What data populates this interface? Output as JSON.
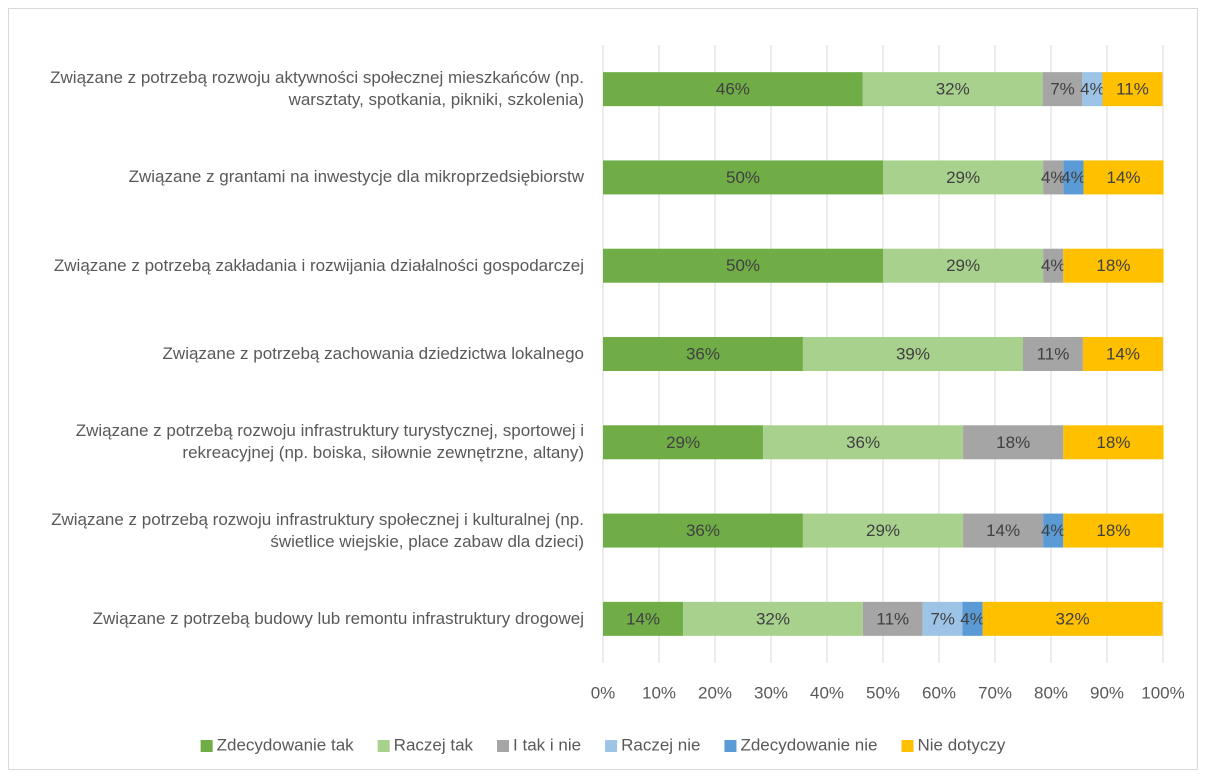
{
  "chart_data": {
    "type": "bar",
    "orientation": "horizontal",
    "stacked": true,
    "categories": [
      "Związane z potrzebą rozwoju aktywności społecznej mieszkańców (np. warsztaty, spotkania, pikniki, szkolenia)",
      "Związane z grantami na inwestycje dla mikroprzedsiębiorstw",
      "Związane z potrzebą zakładania i rozwijania działalności gospodarczej",
      "Związane z potrzebą zachowania dziedzictwa lokalnego",
      "Związane z potrzebą rozwoju infrastruktury turystycznej, sportowej i rekreacyjnej (np. boiska, siłownie zewnętrzne, altany)",
      "Związane z potrzebą rozwoju infrastruktury społecznej i kulturalnej (np. świetlice wiejskie, place zabaw dla dzieci)",
      "Związane z potrzebą budowy lub remontu infrastruktury drogowej"
    ],
    "series": [
      {
        "name": "Zdecydowanie tak",
        "color": "#70ad47",
        "values": [
          46.4,
          50,
          50,
          35.7,
          28.6,
          35.7,
          14.3
        ],
        "value_labels": [
          "46%",
          "50%",
          "50%",
          "36%",
          "29%",
          "36%",
          "14%"
        ]
      },
      {
        "name": "Raczej tak",
        "color": "#a9d18e",
        "values": [
          32.1,
          28.6,
          28.6,
          39.3,
          35.7,
          28.6,
          32.1
        ],
        "value_labels": [
          "32%",
          "29%",
          "29%",
          "39%",
          "36%",
          "29%",
          "32%"
        ]
      },
      {
        "name": "I tak i nie",
        "color": "#a5a5a5",
        "values": [
          7.1,
          3.6,
          3.6,
          10.7,
          17.9,
          14.3,
          10.7
        ],
        "value_labels": [
          "7%",
          "4%",
          "4%",
          "11%",
          "18%",
          "14%",
          "11%"
        ]
      },
      {
        "name": "Raczej nie",
        "color": "#9dc3e6",
        "values": [
          3.6,
          0,
          0,
          0,
          0,
          0,
          7.1
        ],
        "value_labels": [
          "4%",
          null,
          null,
          null,
          null,
          null,
          "7%"
        ]
      },
      {
        "name": "Zdecydowanie nie",
        "color": "#5b9bd5",
        "values": [
          0,
          3.6,
          0,
          0,
          0,
          3.6,
          3.6
        ],
        "value_labels": [
          null,
          "4%",
          null,
          null,
          null,
          "4%",
          "4%"
        ]
      },
      {
        "name": "Nie dotyczy",
        "color": "#ffc000",
        "values": [
          10.7,
          14.3,
          17.9,
          14.3,
          17.9,
          17.9,
          32.1
        ],
        "value_labels": [
          "11%",
          "14%",
          "18%",
          "14%",
          "18%",
          "18%",
          "32%"
        ]
      }
    ],
    "xlim": [
      0,
      100
    ],
    "xticks": [
      {
        "value": 0,
        "label": "0%"
      },
      {
        "value": 10,
        "label": "10%"
      },
      {
        "value": 20,
        "label": "20%"
      },
      {
        "value": 30,
        "label": "30%"
      },
      {
        "value": 40,
        "label": "40%"
      },
      {
        "value": 50,
        "label": "50%"
      },
      {
        "value": 60,
        "label": "60%"
      },
      {
        "value": 70,
        "label": "70%"
      },
      {
        "value": 80,
        "label": "80%"
      },
      {
        "value": 90,
        "label": "90%"
      },
      {
        "value": 100,
        "label": "100%"
      }
    ],
    "grid": true,
    "legend": "bottom"
  }
}
